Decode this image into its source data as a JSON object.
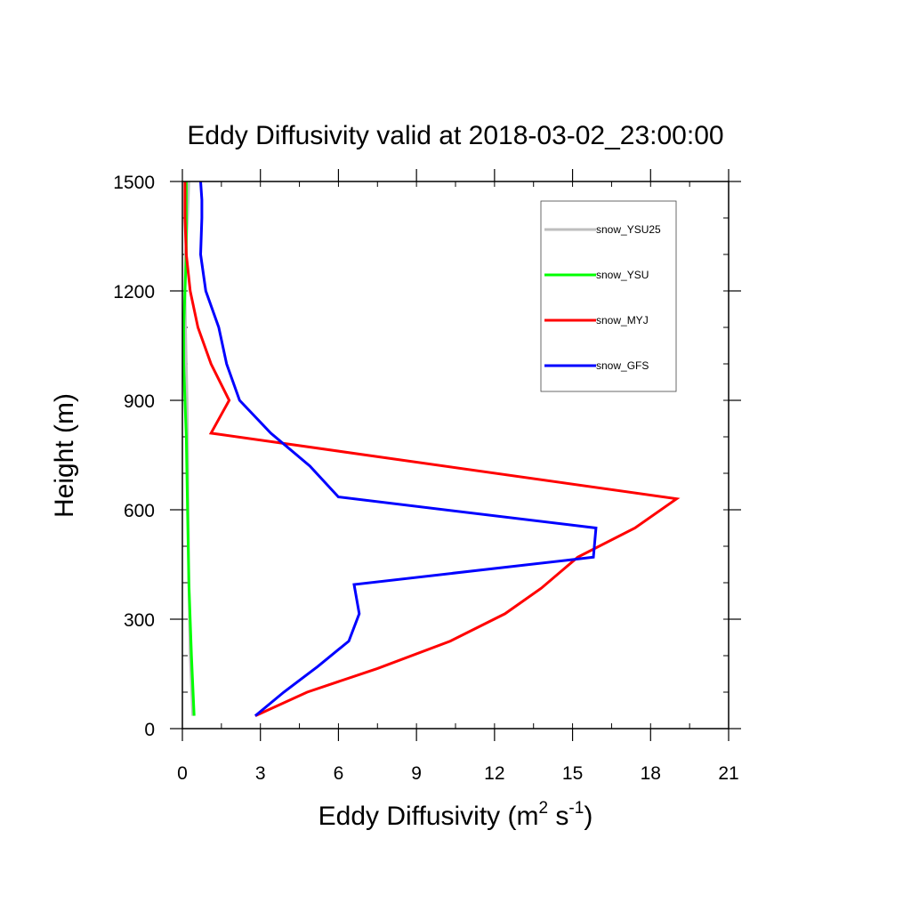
{
  "chart_data": {
    "type": "line",
    "title": "Eddy Diffusivity valid at 2018-03-02_23:00:00",
    "xlabel": {
      "base": "Eddy Diffusivity (m",
      "sup1": "2",
      "mid": " s",
      "sup2": "-1",
      "end": ")"
    },
    "ylabel": "Height (m)",
    "xlim": [
      0,
      21
    ],
    "ylim": [
      0,
      1500
    ],
    "xticks": [
      0,
      3,
      6,
      9,
      12,
      15,
      18,
      21
    ],
    "xtick_labels": [
      "0",
      "3",
      "6",
      "9",
      "12",
      "15",
      "18",
      "21"
    ],
    "yticks": [
      0,
      300,
      600,
      900,
      1200,
      1500
    ],
    "ytick_labels": [
      "0",
      "300",
      "600",
      "900",
      "1200",
      "1500"
    ],
    "grid": false,
    "legend": "top-right",
    "series": [
      {
        "name": "snow_YSU25",
        "color": "#bebebe",
        "x": [
          0.4,
          0.3,
          0.25,
          0.22,
          0.2,
          0.18,
          0.15,
          0.12,
          0.1,
          0.12,
          0.2,
          0.25
        ],
        "y": [
          35,
          200,
          400,
          600,
          800,
          900,
          1000,
          1100,
          1200,
          1300,
          1400,
          1500
        ]
      },
      {
        "name": "snow_YSU",
        "color": "#00ff00",
        "x": [
          0.45,
          0.35,
          0.25,
          0.2,
          0.15,
          0.1,
          0.05,
          0.05,
          0.1,
          0.15,
          0.15,
          0.15
        ],
        "y": [
          35,
          200,
          400,
          600,
          800,
          900,
          1000,
          1100,
          1200,
          1300,
          1400,
          1500
        ]
      },
      {
        "name": "snow_MYJ",
        "color": "#ff0000",
        "x": [
          2.8,
          4.8,
          7.5,
          10.3,
          12.4,
          13.8,
          15.2,
          17.4,
          19.0,
          1.1,
          1.8,
          1.1,
          0.6,
          0.3,
          0.15,
          0.1,
          0.1
        ],
        "y": [
          35,
          100,
          165,
          240,
          315,
          385,
          470,
          550,
          630,
          810,
          900,
          1000,
          1100,
          1200,
          1300,
          1400,
          1500
        ]
      },
      {
        "name": "snow_GFS",
        "color": "#0000ff",
        "x": [
          2.8,
          3.9,
          5.2,
          6.4,
          6.8,
          6.6,
          15.8,
          15.9,
          6.0,
          4.9,
          3.4,
          2.2,
          1.7,
          1.4,
          0.9,
          0.7,
          0.75,
          0.75,
          0.7
        ],
        "y": [
          35,
          100,
          170,
          240,
          315,
          395,
          470,
          550,
          635,
          720,
          810,
          900,
          1000,
          1100,
          1200,
          1300,
          1400,
          1450,
          1500
        ]
      }
    ]
  }
}
